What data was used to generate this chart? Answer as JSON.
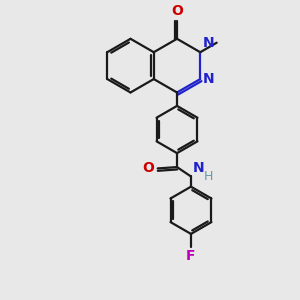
{
  "bg_color": "#e8e8e8",
  "bond_color": "#1a1a1a",
  "nitrogen_color": "#2222cc",
  "oxygen_color": "#cc0000",
  "fluorine_color": "#bb00bb",
  "nh_color": "#6699aa",
  "lw": 1.6,
  "dbl_off": 0.055,
  "dbl_shorten": 0.12,
  "fig_w": 3.0,
  "fig_h": 3.0,
  "dpi": 100,
  "xlim": [
    -1.6,
    1.6
  ],
  "ylim": [
    -3.6,
    3.0
  ]
}
